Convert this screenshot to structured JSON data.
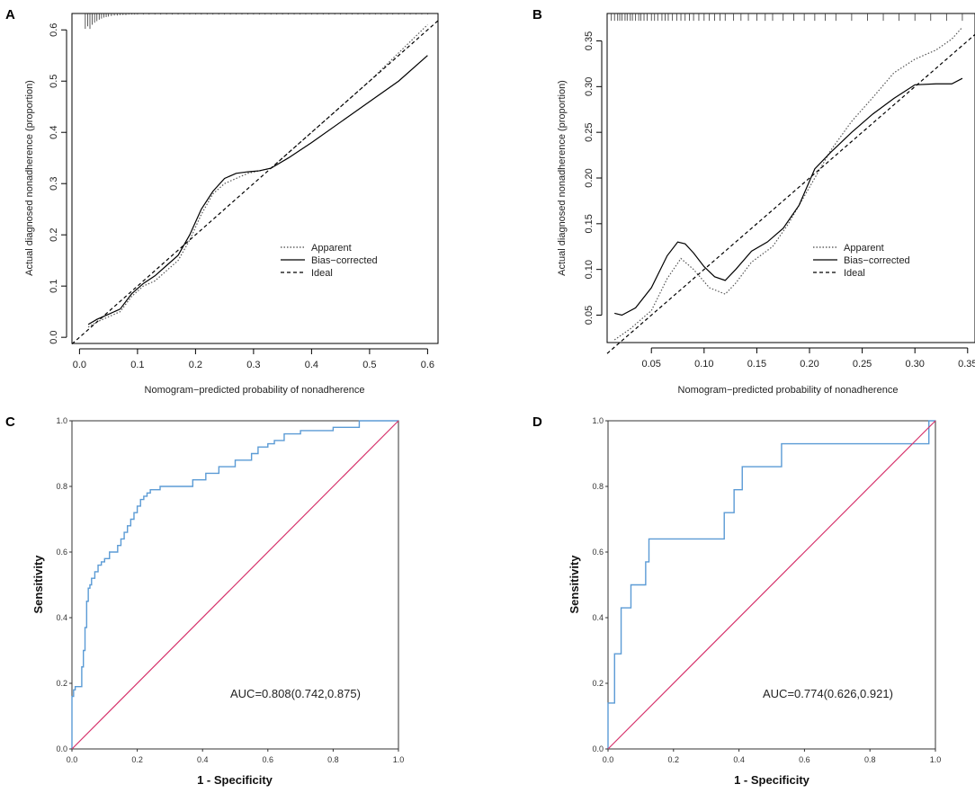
{
  "figure": {
    "panel_labels": [
      "A",
      "B",
      "C",
      "D"
    ]
  },
  "chart_data": [
    {
      "type": "line",
      "panel": "A",
      "title": "",
      "xlabel": "Nomogram−predicted probability of nonadherence",
      "ylabel": "Actual diagnosed nonadherence (proportion)",
      "xlim": [
        -0.013,
        0.618
      ],
      "ylim": [
        -0.012,
        0.632
      ],
      "xticks": [
        0.0,
        0.1,
        0.2,
        0.3,
        0.4,
        0.5,
        0.6
      ],
      "xtick_labels": [
        "0.0",
        "0.1",
        "0.2",
        "0.3",
        "0.4",
        "0.5",
        "0.6"
      ],
      "yticks": [
        0.0,
        0.1,
        0.2,
        0.3,
        0.4,
        0.5,
        0.6
      ],
      "ytick_labels": [
        "0.0",
        "0.1",
        "0.2",
        "0.3",
        "0.4",
        "0.5",
        "0.6"
      ],
      "legend": [
        "Apparent",
        "Bias−corrected",
        "Ideal"
      ],
      "legend_position": "bottom-right",
      "series": [
        {
          "name": "Apparent",
          "style": "dotted",
          "x": [
            0.015,
            0.03,
            0.05,
            0.07,
            0.09,
            0.11,
            0.13,
            0.15,
            0.17,
            0.19,
            0.21,
            0.23,
            0.25,
            0.27,
            0.29,
            0.31,
            0.33,
            0.36,
            0.4,
            0.45,
            0.5,
            0.55,
            0.6
          ],
          "y": [
            0.02,
            0.03,
            0.04,
            0.05,
            0.08,
            0.1,
            0.11,
            0.13,
            0.15,
            0.19,
            0.24,
            0.28,
            0.3,
            0.31,
            0.32,
            0.325,
            0.33,
            0.36,
            0.4,
            0.45,
            0.5,
            0.555,
            0.61
          ]
        },
        {
          "name": "Bias−corrected",
          "style": "solid",
          "x": [
            0.015,
            0.03,
            0.05,
            0.07,
            0.09,
            0.11,
            0.13,
            0.15,
            0.17,
            0.19,
            0.21,
            0.23,
            0.25,
            0.27,
            0.29,
            0.31,
            0.33,
            0.36,
            0.4,
            0.45,
            0.5,
            0.55,
            0.6
          ],
          "y": [
            0.025,
            0.035,
            0.045,
            0.055,
            0.085,
            0.105,
            0.12,
            0.14,
            0.16,
            0.2,
            0.25,
            0.285,
            0.31,
            0.32,
            0.323,
            0.325,
            0.33,
            0.35,
            0.38,
            0.42,
            0.46,
            0.5,
            0.55
          ]
        },
        {
          "name": "Ideal",
          "style": "dashed",
          "x": [
            -0.013,
            0.618
          ],
          "y": [
            -0.013,
            0.618
          ]
        }
      ],
      "rug": [
        0.01,
        0.014,
        0.018,
        0.022,
        0.026,
        0.03,
        0.034,
        0.038,
        0.042,
        0.046,
        0.05,
        0.055,
        0.06,
        0.065,
        0.07,
        0.075,
        0.08,
        0.085,
        0.09,
        0.095,
        0.1,
        0.11,
        0.12,
        0.13,
        0.14,
        0.15,
        0.16,
        0.17,
        0.18,
        0.19,
        0.2,
        0.21,
        0.22,
        0.23,
        0.24,
        0.25,
        0.26,
        0.27,
        0.28,
        0.29,
        0.3,
        0.31,
        0.32,
        0.33,
        0.34,
        0.35,
        0.36,
        0.37,
        0.38,
        0.39,
        0.4,
        0.41,
        0.42,
        0.43,
        0.44,
        0.45,
        0.46,
        0.47,
        0.48,
        0.49,
        0.5,
        0.51,
        0.52,
        0.53,
        0.54,
        0.55,
        0.56,
        0.57,
        0.58,
        0.59,
        0.6
      ],
      "rug_length": [
        0.03,
        0.025,
        0.03,
        0.022,
        0.018,
        0.015,
        0.012,
        0.01,
        0.008,
        0.007,
        0.006,
        0.005,
        0.004,
        0.004,
        0.003,
        0.003,
        0.003,
        0.002,
        0.002,
        0.002,
        0.002,
        0.002,
        0.002,
        0.002,
        0.002,
        0.002,
        0.002,
        0.002,
        0.002,
        0.002,
        0.002,
        0.002,
        0.002,
        0.002,
        0.002,
        0.002,
        0.002,
        0.002,
        0.002,
        0.002,
        0.002,
        0.002,
        0.002,
        0.002,
        0.002,
        0.002,
        0.002,
        0.002,
        0.002,
        0.002,
        0.002,
        0.002,
        0.002,
        0.002,
        0.002,
        0.002,
        0.002,
        0.002,
        0.002,
        0.002,
        0.002,
        0.002,
        0.002,
        0.002,
        0.002,
        0.002,
        0.002,
        0.002,
        0.002,
        0.002,
        0.002
      ]
    },
    {
      "type": "line",
      "panel": "B",
      "title": "",
      "xlabel": "Nomogram−predicted probability of nonadherence",
      "ylabel": "Actual diagnosed nonadherence (proportion)",
      "xlim": [
        0.008,
        0.357
      ],
      "ylim": [
        0.02,
        0.38
      ],
      "xticks": [
        0.05,
        0.1,
        0.15,
        0.2,
        0.25,
        0.3,
        0.35
      ],
      "xtick_labels": [
        "0.05",
        "0.10",
        "0.15",
        "0.20",
        "0.25",
        "0.30",
        "0.35"
      ],
      "yticks": [
        0.05,
        0.1,
        0.15,
        0.2,
        0.25,
        0.3,
        0.35
      ],
      "ytick_labels": [
        "0.05",
        "0.10",
        "0.15",
        "0.20",
        "0.25",
        "0.30",
        "0.35"
      ],
      "legend": [
        "Apparent",
        "Bias−corrected",
        "Ideal"
      ],
      "legend_position": "bottom-right",
      "series": [
        {
          "name": "Apparent",
          "style": "dotted",
          "x": [
            0.015,
            0.03,
            0.05,
            0.065,
            0.078,
            0.09,
            0.105,
            0.12,
            0.13,
            0.145,
            0.165,
            0.18,
            0.2,
            0.22,
            0.24,
            0.26,
            0.28,
            0.3,
            0.32,
            0.335,
            0.345
          ],
          "y": [
            0.023,
            0.035,
            0.055,
            0.09,
            0.112,
            0.1,
            0.08,
            0.073,
            0.085,
            0.108,
            0.125,
            0.15,
            0.19,
            0.23,
            0.262,
            0.288,
            0.315,
            0.33,
            0.34,
            0.352,
            0.365
          ]
        },
        {
          "name": "Bias−corrected",
          "style": "solid",
          "x": [
            0.015,
            0.022,
            0.035,
            0.05,
            0.065,
            0.075,
            0.082,
            0.09,
            0.1,
            0.11,
            0.12,
            0.13,
            0.145,
            0.16,
            0.175,
            0.19,
            0.205,
            0.22,
            0.24,
            0.26,
            0.28,
            0.3,
            0.32,
            0.335,
            0.345
          ],
          "y": [
            0.052,
            0.05,
            0.058,
            0.08,
            0.115,
            0.13,
            0.128,
            0.118,
            0.103,
            0.092,
            0.088,
            0.1,
            0.12,
            0.13,
            0.145,
            0.17,
            0.21,
            0.228,
            0.25,
            0.27,
            0.287,
            0.302,
            0.303,
            0.303,
            0.309
          ]
        },
        {
          "name": "Ideal",
          "style": "dashed",
          "x": [
            0.008,
            0.357
          ],
          "y": [
            0.008,
            0.357
          ]
        }
      ],
      "rug": [
        0.012,
        0.015,
        0.018,
        0.02,
        0.022,
        0.025,
        0.027,
        0.03,
        0.032,
        0.035,
        0.038,
        0.04,
        0.043,
        0.046,
        0.05,
        0.053,
        0.056,
        0.06,
        0.063,
        0.066,
        0.07,
        0.074,
        0.078,
        0.082,
        0.086,
        0.09,
        0.095,
        0.1,
        0.105,
        0.11,
        0.115,
        0.12,
        0.128,
        0.135,
        0.142,
        0.15,
        0.158,
        0.165,
        0.175,
        0.185,
        0.195,
        0.205,
        0.215,
        0.225,
        0.24,
        0.255,
        0.27,
        0.285,
        0.3,
        0.315,
        0.33,
        0.345
      ],
      "rug_length": [
        0.008
      ]
    },
    {
      "type": "line",
      "panel": "C",
      "title": "",
      "xlabel": "1 - Specificity",
      "ylabel": "Sensitivity",
      "xlim": [
        0,
        1
      ],
      "ylim": [
        0,
        1
      ],
      "xticks": [
        0.0,
        0.2,
        0.4,
        0.6,
        0.8,
        1.0
      ],
      "xtick_labels": [
        "0.0",
        "0.2",
        "0.4",
        "0.6",
        "0.8",
        "1.0"
      ],
      "yticks": [
        0.0,
        0.2,
        0.4,
        0.6,
        0.8,
        1.0
      ],
      "ytick_labels": [
        "0.0",
        "0.2",
        "0.4",
        "0.6",
        "0.8",
        "1.0"
      ],
      "annotation": "AUC=0.808(0.742,0.875)",
      "series": [
        {
          "name": "ROC",
          "color": "#5b9bd5",
          "style": "step",
          "x": [
            0.0,
            0.0,
            0.005,
            0.005,
            0.01,
            0.01,
            0.03,
            0.03,
            0.035,
            0.035,
            0.04,
            0.04,
            0.045,
            0.045,
            0.05,
            0.05,
            0.055,
            0.055,
            0.06,
            0.06,
            0.07,
            0.07,
            0.08,
            0.08,
            0.09,
            0.09,
            0.1,
            0.1,
            0.115,
            0.115,
            0.14,
            0.14,
            0.15,
            0.15,
            0.16,
            0.16,
            0.17,
            0.17,
            0.18,
            0.18,
            0.19,
            0.19,
            0.2,
            0.2,
            0.21,
            0.21,
            0.22,
            0.22,
            0.23,
            0.23,
            0.24,
            0.24,
            0.27,
            0.27,
            0.3,
            0.3,
            0.37,
            0.37,
            0.41,
            0.41,
            0.45,
            0.45,
            0.5,
            0.5,
            0.55,
            0.55,
            0.57,
            0.57,
            0.6,
            0.6,
            0.62,
            0.62,
            0.65,
            0.65,
            0.7,
            0.7,
            0.8,
            0.8,
            0.88,
            0.88,
            1.0
          ],
          "y": [
            0.0,
            0.16,
            0.16,
            0.18,
            0.18,
            0.19,
            0.19,
            0.25,
            0.25,
            0.3,
            0.3,
            0.37,
            0.37,
            0.45,
            0.45,
            0.49,
            0.49,
            0.5,
            0.5,
            0.52,
            0.52,
            0.54,
            0.54,
            0.56,
            0.56,
            0.57,
            0.57,
            0.58,
            0.58,
            0.6,
            0.6,
            0.62,
            0.62,
            0.64,
            0.64,
            0.66,
            0.66,
            0.68,
            0.68,
            0.7,
            0.7,
            0.72,
            0.72,
            0.74,
            0.74,
            0.76,
            0.76,
            0.77,
            0.77,
            0.78,
            0.78,
            0.79,
            0.79,
            0.8,
            0.8,
            0.8,
            0.8,
            0.82,
            0.82,
            0.84,
            0.84,
            0.86,
            0.86,
            0.88,
            0.88,
            0.9,
            0.9,
            0.92,
            0.92,
            0.93,
            0.93,
            0.94,
            0.94,
            0.96,
            0.96,
            0.97,
            0.97,
            0.98,
            0.98,
            1.0,
            1.0
          ]
        },
        {
          "name": "Reference",
          "color": "#d6336c",
          "style": "solid",
          "x": [
            0,
            1
          ],
          "y": [
            0,
            1
          ]
        }
      ]
    },
    {
      "type": "line",
      "panel": "D",
      "title": "",
      "xlabel": "1 - Specificity",
      "ylabel": "Sensitivity",
      "xlim": [
        0,
        1
      ],
      "ylim": [
        0,
        1
      ],
      "xticks": [
        0.0,
        0.2,
        0.4,
        0.6,
        0.8,
        1.0
      ],
      "xtick_labels": [
        "0.0",
        "0.2",
        "0.4",
        "0.6",
        "0.8",
        "1.0"
      ],
      "yticks": [
        0.0,
        0.2,
        0.4,
        0.6,
        0.8,
        1.0
      ],
      "ytick_labels": [
        "0.0",
        "0.2",
        "0.4",
        "0.6",
        "0.8",
        "1.0"
      ],
      "annotation": "AUC=0.774(0.626,0.921)",
      "series": [
        {
          "name": "ROC",
          "color": "#5b9bd5",
          "style": "step",
          "x": [
            0.0,
            0.0,
            0.02,
            0.02,
            0.04,
            0.04,
            0.07,
            0.07,
            0.115,
            0.115,
            0.125,
            0.125,
            0.355,
            0.355,
            0.385,
            0.385,
            0.41,
            0.41,
            0.53,
            0.53,
            0.98,
            0.98,
            1.0
          ],
          "y": [
            0.0,
            0.14,
            0.14,
            0.29,
            0.29,
            0.43,
            0.43,
            0.5,
            0.5,
            0.57,
            0.57,
            0.64,
            0.64,
            0.72,
            0.72,
            0.79,
            0.79,
            0.86,
            0.86,
            0.93,
            0.93,
            1.0,
            1.0
          ]
        },
        {
          "name": "Reference",
          "color": "#d6336c",
          "style": "solid",
          "x": [
            0,
            1
          ],
          "y": [
            0,
            1
          ]
        }
      ]
    }
  ]
}
